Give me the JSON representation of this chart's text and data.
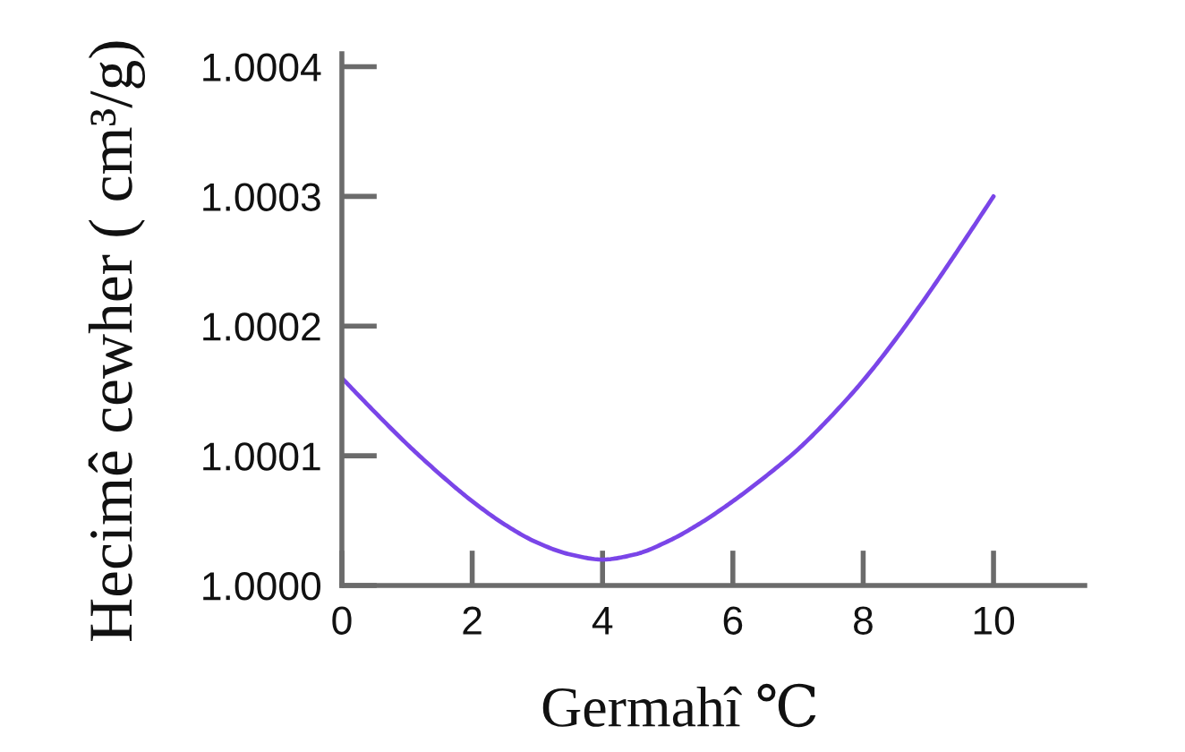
{
  "chart_data": {
    "type": "line",
    "xlabel": "Germahî ℃",
    "ylabel": "Hecimê cewher ( cm³/g)",
    "x": [
      0,
      0.5,
      1,
      1.5,
      2,
      2.5,
      3,
      3.5,
      4,
      4.5,
      5,
      5.5,
      6,
      6.5,
      7,
      7.5,
      8,
      8.5,
      9,
      9.5,
      10
    ],
    "series": [
      {
        "color": "#7a45e8",
        "values": [
          1.00016,
          1.000134,
          1.000109,
          1.000086,
          1.000065,
          1.000047,
          1.000033,
          1.000024,
          1.00002,
          1.000024,
          1.000034,
          1.000048,
          1.000065,
          1.000084,
          1.000105,
          1.00013,
          1.000158,
          1.00019,
          1.000225,
          1.000262,
          1.0003
        ]
      }
    ],
    "xlim": [
      0,
      11.4
    ],
    "ylim": [
      1.0,
      1.00041
    ],
    "xticks": [
      0,
      2,
      4,
      6,
      8,
      10
    ],
    "yticks": [
      {
        "value": 1.0,
        "label": "1.0000"
      },
      {
        "value": 1.0001,
        "label": "1.0001"
      },
      {
        "value": 1.0002,
        "label": "1.0002"
      },
      {
        "value": 1.0003,
        "label": "1.0003"
      },
      {
        "value": 1.0004,
        "label": "1.0004"
      }
    ],
    "line_style": "solid"
  }
}
